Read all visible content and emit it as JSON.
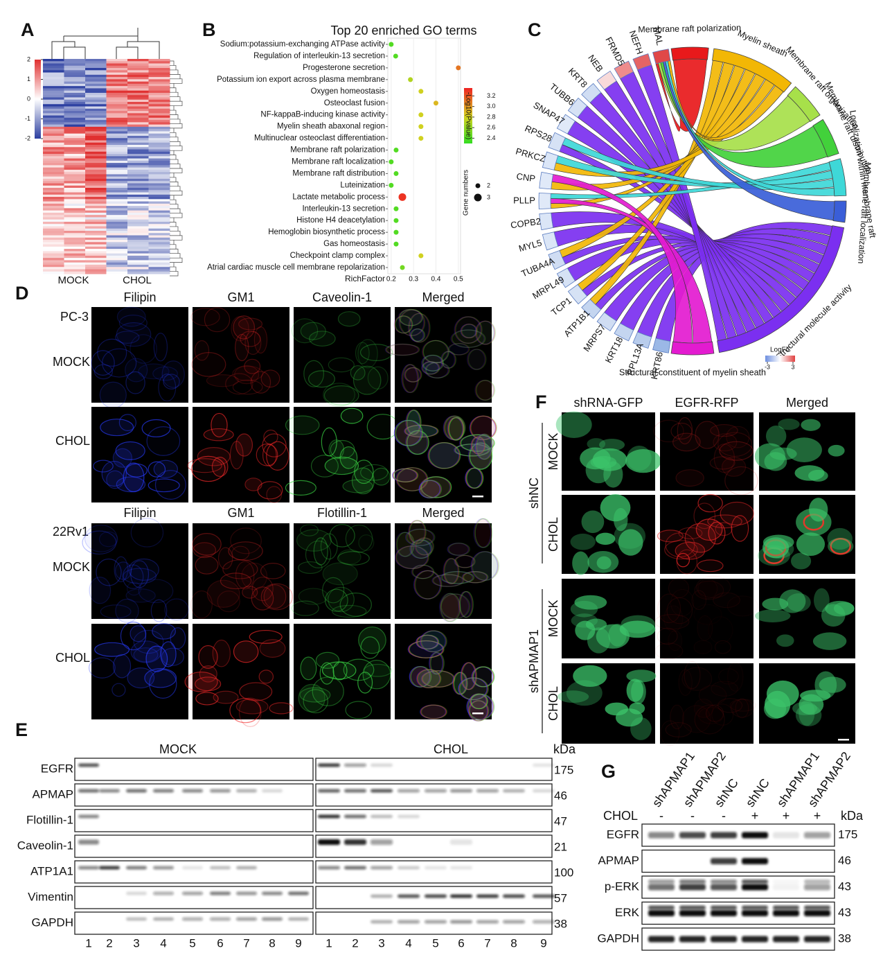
{
  "A": {
    "label": "A",
    "scale_ticks": [
      2,
      1,
      0,
      -1,
      -2
    ],
    "groups": [
      "MOCK",
      "CHOL"
    ]
  },
  "B": {
    "label": "B",
    "title": "Top 20 enriched GO terms",
    "terms": [
      "Sodium:potassium-exchanging ATPase activity",
      "Regulation of interleukin-13 secretion",
      "Progesterone secretion",
      "Potassium ion export across plasma membrane",
      "Oxygen homeostasis",
      "Osteoclast fusion",
      "NF-kappaB-inducing kinase activity",
      "Myelin sheath abaxonal region",
      "Multinuclear osteoclast differentiation",
      "Membrane raft polarization",
      "Membrane raft localization",
      "Membrane raft distribution",
      "Luteinization",
      "Lactate metabolic process",
      "Interleukin-13 secretion",
      "Histone H4 deacetylation",
      "Hemoglobin biosynthetic process",
      "Gas homeostasis",
      "Checkpoint clamp complex",
      "Atrial cardiac muscle cell membrane repolarization"
    ],
    "rich_factor": [
      0.2,
      0.22,
      0.5,
      0.286,
      0.333,
      0.4,
      0.333,
      0.333,
      0.333,
      0.222,
      0.2,
      0.222,
      0.2,
      0.25,
      0.222,
      0.222,
      0.222,
      0.222,
      0.333,
      0.25
    ],
    "log_p": [
      2.4,
      2.4,
      3.1,
      2.7,
      2.8,
      2.9,
      2.8,
      2.8,
      2.8,
      2.4,
      2.4,
      2.4,
      2.4,
      3.3,
      2.4,
      2.4,
      2.4,
      2.4,
      2.8,
      2.5
    ],
    "gene_numbers": [
      2,
      2,
      2,
      2,
      2,
      2,
      2,
      2,
      2,
      2,
      2,
      2,
      2,
      3,
      2,
      2,
      2,
      2,
      2,
      2
    ],
    "xlabel": "RichFactor",
    "xlim": [
      0.185,
      0.51
    ],
    "xticks": [
      0.2,
      0.3,
      0.4,
      0.5
    ],
    "color_label": "-Log10(Pvalue)",
    "color_lim": [
      2.3,
      3.35
    ],
    "color_ticks": [
      3.2,
      {
        "value": 3,
        "label": "3.0"
      },
      2.8,
      2.6,
      2.4
    ],
    "size_label": "Gene numbers",
    "size_ticks": [
      2,
      3
    ]
  },
  "C": {
    "label": "C",
    "genes": [
      {
        "name": "KRT86",
        "color": "#9bb8e6"
      },
      {
        "name": "RPL13A",
        "color": "#b8ccec"
      },
      {
        "name": "KRT18",
        "color": "#c4d5f0"
      },
      {
        "name": "MRPS7",
        "color": "#d0ddf3"
      },
      {
        "name": "ATP1B1",
        "color": "#c4d5f0"
      },
      {
        "name": "TCP1",
        "color": "#d6e2f5"
      },
      {
        "name": "MRPL49",
        "color": "#d6e2f5"
      },
      {
        "name": "TUBA4A",
        "color": "#d0ddf3"
      },
      {
        "name": "MYL5",
        "color": "#dbe6f7"
      },
      {
        "name": "COPB2",
        "color": "#dbe6f7"
      },
      {
        "name": "PLLP",
        "color": "#e0e9f8"
      },
      {
        "name": "CNP",
        "color": "#e0e9f8"
      },
      {
        "name": "PRKCZ",
        "color": "#dbe6f7"
      },
      {
        "name": "RPS28",
        "color": "#d6e2f5"
      },
      {
        "name": "SNAP47",
        "color": "#e0e9f8"
      },
      {
        "name": "TUBB6",
        "color": "#d6e2f5"
      },
      {
        "name": "KRT8",
        "color": "#d0ddf3"
      },
      {
        "name": "NEB",
        "color": "#f8dada"
      },
      {
        "name": "FRMD5",
        "color": "#ee8c8c"
      },
      {
        "name": "NEFH",
        "color": "#e56464"
      },
      {
        "name": "MAL",
        "color": "#e04848"
      }
    ],
    "terms": [
      {
        "name": "Membrane raft polarization",
        "color": "#e8191b"
      },
      {
        "name": "Myelin sheath",
        "color": "#f2b705"
      },
      {
        "name": "Membrane raft organization",
        "color": "#a7e04a"
      },
      {
        "name": "Membrane raft distribution",
        "color": "#42d13b"
      },
      {
        "name": "Localization within membrane raft",
        "color": "#3ed8d8"
      },
      {
        "name": "Membrane raft localization",
        "color": "#3a5ed8"
      },
      {
        "name": "Structural molecule activity",
        "color": "#7b2ff0"
      },
      {
        "name": "Structural constituent of myelin sheath",
        "color": "#e31bd0"
      }
    ],
    "legend_title": "LogFC",
    "legend_ticks": [
      -3,
      3
    ]
  },
  "D": {
    "label": "D",
    "sets": [
      {
        "cell_line": "PC-3",
        "channels": [
          "Filipin",
          "GM1",
          "Caveolin-1",
          "Merged"
        ],
        "conditions": [
          "MOCK",
          "CHOL"
        ]
      },
      {
        "cell_line": "22Rv1",
        "channels": [
          "Filipin",
          "GM1",
          "Flotillin-1",
          "Merged"
        ],
        "conditions": [
          "MOCK",
          "CHOL"
        ]
      }
    ]
  },
  "E": {
    "label": "E",
    "groups": [
      "MOCK",
      "CHOL"
    ],
    "unit": "kDa",
    "proteins": [
      {
        "name": "EGFR",
        "kda": 175
      },
      {
        "name": "APMAP",
        "kda": 46
      },
      {
        "name": "Flotillin-1",
        "kda": 47
      },
      {
        "name": "Caveolin-1",
        "kda": 21
      },
      {
        "name": "ATP1A1",
        "kda": 100
      },
      {
        "name": "Vimentin",
        "kda": 57
      },
      {
        "name": "GAPDH",
        "kda": 38
      }
    ],
    "lanes": [
      1,
      2,
      3,
      4,
      5,
      6,
      7,
      8,
      9
    ]
  },
  "F": {
    "label": "F",
    "channels": [
      "shRNA-GFP",
      "EGFR-RFP",
      "Merged"
    ],
    "groups": [
      {
        "name": "shNC",
        "conditions": [
          "MOCK",
          "CHOL"
        ]
      },
      {
        "name": "shAPMAP1",
        "conditions": [
          "MOCK",
          "CHOL"
        ]
      }
    ]
  },
  "G": {
    "label": "G",
    "lanes": [
      "shAPMAP1",
      "shAPMAP2",
      "shNC",
      "shNC",
      "shAPMAP1",
      "shAPMAP2"
    ],
    "treatment": "CHOL",
    "treatment_signs": [
      "-",
      "-",
      "-",
      "+",
      "+",
      "+"
    ],
    "unit": "kDa",
    "proteins": [
      {
        "name": "EGFR",
        "kda": 175
      },
      {
        "name": "APMAP",
        "kda": 46
      },
      {
        "name": "p-ERK",
        "kda": 43
      },
      {
        "name": "ERK",
        "kda": 43
      },
      {
        "name": "GAPDH",
        "kda": 38
      }
    ]
  }
}
